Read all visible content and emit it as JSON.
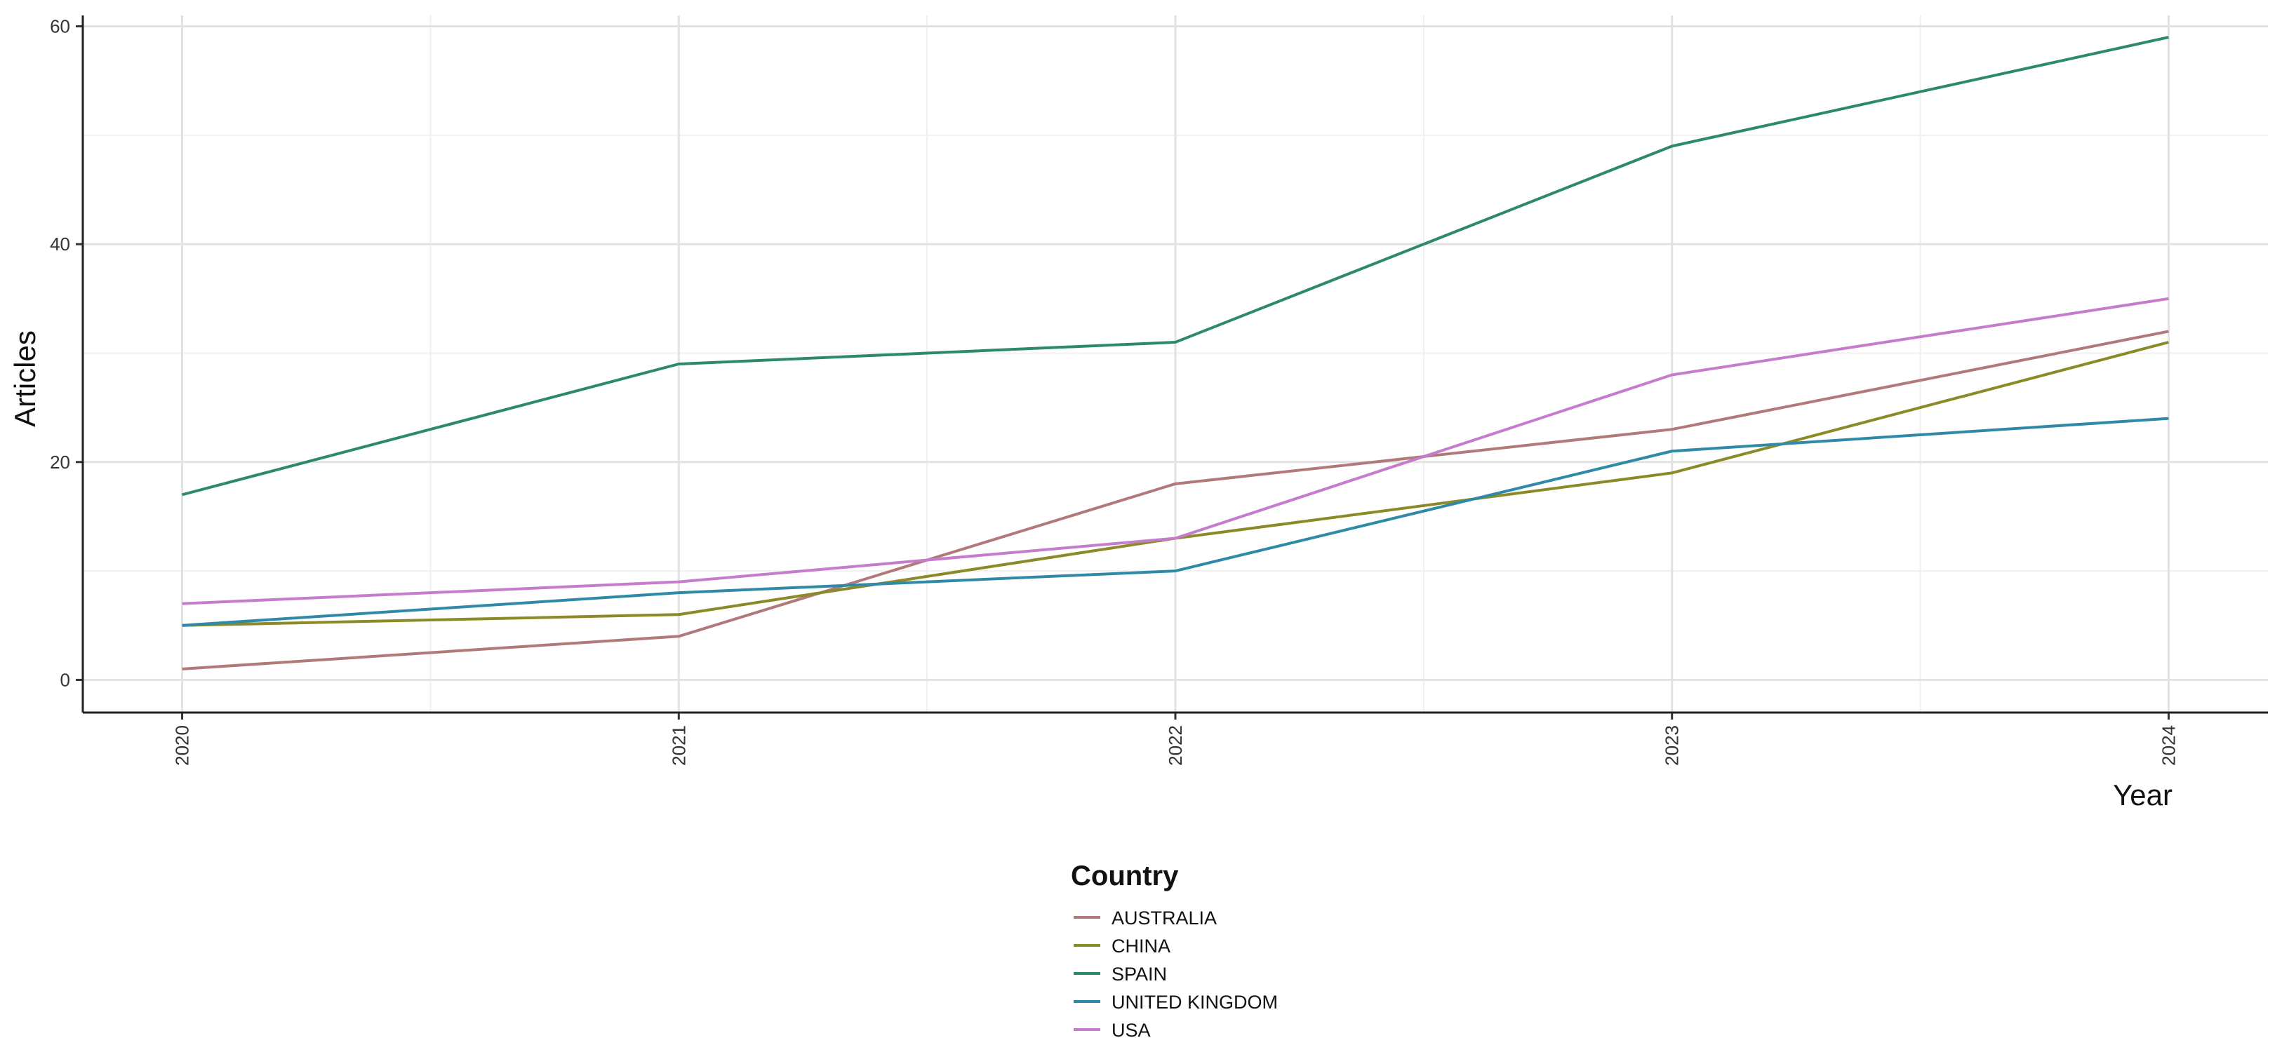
{
  "chart_data": {
    "type": "line",
    "title": "",
    "xlabel": "Year",
    "ylabel": "Articles",
    "x": [
      2020,
      2021,
      2022,
      2023,
      2024
    ],
    "x_tick_labels": [
      "2020",
      "2021",
      "2022",
      "2023",
      "2024"
    ],
    "y_tick_labels": [
      "0",
      "20",
      "40",
      "60"
    ],
    "y_ticks": [
      0,
      20,
      40,
      60
    ],
    "ylim": [
      -3,
      61
    ],
    "xlim": [
      2019.8,
      2024.2
    ],
    "grid": true,
    "legend_title": "Country",
    "legend_placement": "bottom",
    "series": [
      {
        "name": "AUSTRALIA",
        "color": "#b07a78",
        "values": [
          1,
          4,
          18,
          23,
          32
        ]
      },
      {
        "name": "CHINA",
        "color": "#8c8a28",
        "values": [
          5,
          6,
          13,
          19,
          31
        ]
      },
      {
        "name": "SPAIN",
        "color": "#2c8a68",
        "values": [
          17,
          29,
          31,
          49,
          59
        ]
      },
      {
        "name": "UNITED KINGDOM",
        "color": "#2e8aa6",
        "values": [
          5,
          8,
          10,
          21,
          24
        ]
      },
      {
        "name": "USA",
        "color": "#c67ccc",
        "values": [
          7,
          9,
          13,
          28,
          35
        ]
      }
    ]
  }
}
